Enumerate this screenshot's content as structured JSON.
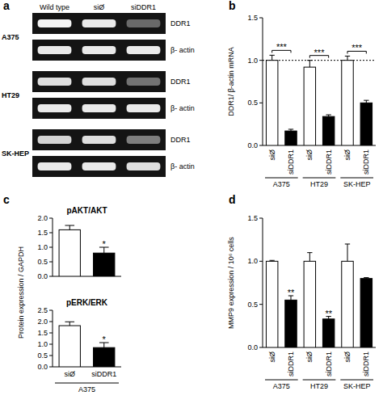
{
  "chart_data": [
    {
      "type": "blot",
      "panel": "a",
      "lanes": [
        "Wild type",
        "siØ",
        "siDDR1"
      ],
      "groups": [
        {
          "name": "A375",
          "rows": [
            {
              "name": "DDR1",
              "values": [
                0.95,
                0.9,
                0.3
              ]
            },
            {
              "name": "β- actin",
              "values": [
                0.9,
                0.9,
                0.9
              ]
            }
          ]
        },
        {
          "name": "HT29",
          "rows": [
            {
              "name": "DDR1",
              "values": [
                0.85,
                0.85,
                0.35
              ]
            },
            {
              "name": "β- actin",
              "values": [
                0.9,
                0.9,
                0.9
              ]
            }
          ]
        },
        {
          "name": "SK-HEP",
          "rows": [
            {
              "name": "DDR1",
              "values": [
                0.8,
                0.85,
                0.4
              ]
            },
            {
              "name": "β- actin",
              "values": [
                0.9,
                0.9,
                0.85
              ]
            }
          ]
        }
      ]
    },
    {
      "type": "bar",
      "panel": "b",
      "ylabel": "DDR1/ β-actin mRNA",
      "categories": [
        "siØ",
        "siDDR1",
        "siØ",
        "siDDR1",
        "siØ",
        "siDDR1"
      ],
      "groups": [
        "A375",
        "HT29",
        "SK-HEP"
      ],
      "values": [
        1,
        0.17,
        0.92,
        0.34,
        1,
        0.5
      ],
      "errors": [
        0.06,
        0.02,
        0.08,
        0.02,
        0.05,
        0.03
      ],
      "colors": [
        "#ffffff",
        "#000000",
        "#ffffff",
        "#000000",
        "#ffffff",
        "#000000"
      ],
      "ylim": [
        0,
        1.5
      ],
      "yticks": [
        {
          "value": 0,
          "label": "0.0"
        },
        {
          "value": 0.5,
          "label": "0.5"
        },
        {
          "value": 1,
          "label": "1.0"
        },
        {
          "value": 1.5,
          "label": "1.5"
        }
      ],
      "reference_line": 1,
      "annotations": [
        {
          "text": "***",
          "categories": [
            0,
            1
          ]
        },
        {
          "text": "***",
          "categories": [
            2,
            3
          ]
        },
        {
          "text": "***",
          "categories": [
            4,
            5
          ]
        }
      ]
    },
    {
      "type": "bar",
      "panel": "c",
      "title": "pAKT/AKT",
      "ylabel": "Protein expression / GAPDH",
      "categories": [
        null,
        null
      ],
      "values": [
        1.6,
        0.8
      ],
      "errors": [
        0.15,
        0.2
      ],
      "colors": [
        "#ffffff",
        "#000000"
      ],
      "ylim": [
        0,
        2
      ],
      "yticks": [
        {
          "value": 0,
          "label": "0.0"
        },
        {
          "value": 0.5,
          "label": "0.5"
        },
        {
          "value": 1,
          "label": "1.0"
        },
        {
          "value": 1.5,
          "label": "1.5"
        },
        {
          "value": 2,
          "label": "2.0"
        }
      ],
      "annotations": [
        {
          "text": "*",
          "categories": [
            1
          ]
        }
      ]
    },
    {
      "type": "bar",
      "title": "pERK/ERK",
      "categories": [
        "siØ",
        "siDDR1"
      ],
      "groups": [
        "A375"
      ],
      "values": [
        1.82,
        0.85
      ],
      "errors": [
        0.17,
        0.22
      ],
      "colors": [
        "#ffffff",
        "#000000"
      ],
      "ylim": [
        0,
        2.5
      ],
      "yticks": [
        {
          "value": 0,
          "label": "0.0"
        },
        {
          "value": 0.5,
          "label": "0.5"
        },
        {
          "value": 1,
          "label": "1.0"
        },
        {
          "value": 1.5,
          "label": "1.5"
        },
        {
          "value": 2,
          "label": "2.0"
        },
        {
          "value": 2.5,
          "label": "2.5"
        }
      ],
      "annotations": [
        {
          "text": "*",
          "categories": [
            1
          ]
        }
      ]
    },
    {
      "type": "bar",
      "panel": "d",
      "ylabel": "MMP9 expression / 10⁶ cells",
      "categories": [
        "siØ",
        "siDDR1",
        "siØ",
        "siDDR1",
        "siØ",
        "siDDR1"
      ],
      "groups": [
        "A375",
        "HT29",
        "SK-HEP"
      ],
      "values": [
        1,
        0.55,
        1,
        0.33,
        1,
        0.8
      ],
      "errors": [
        0.01,
        0.05,
        0.1,
        0.03,
        0.2,
        0.01
      ],
      "colors": [
        "#ffffff",
        "#000000",
        "#ffffff",
        "#000000",
        "#ffffff",
        "#000000"
      ],
      "ylim": [
        0,
        1.5
      ],
      "yticks": [
        {
          "value": 0,
          "label": "0.0"
        },
        {
          "value": 0.5,
          "label": "0.5"
        },
        {
          "value": 1,
          "label": "1.0"
        },
        {
          "value": 1.5,
          "label": "1.5"
        }
      ],
      "annotations": [
        {
          "text": "**",
          "categories": [
            1
          ]
        },
        {
          "text": "**",
          "categories": [
            3
          ]
        }
      ]
    }
  ]
}
